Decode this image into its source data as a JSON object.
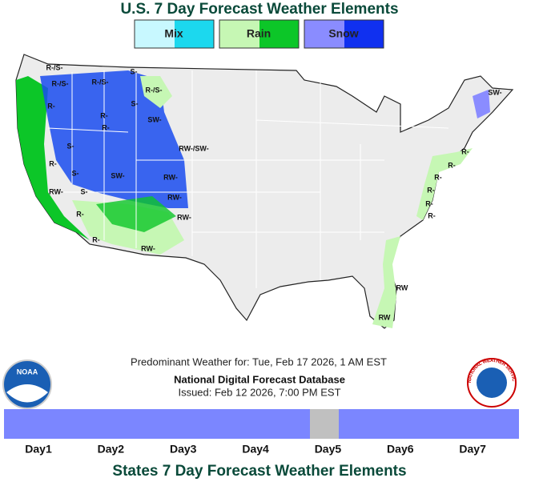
{
  "header": {
    "title": "U.S. 7 Day Forecast Weather Elements"
  },
  "legend": [
    "Mix",
    "Rain",
    "Snow"
  ],
  "map_labels": [
    "R-/S-",
    "R-/S-",
    "R-/S-",
    "S-",
    "R-/S-",
    "R-",
    "S-",
    "SW-",
    "R-",
    "R-",
    "S-",
    "RW-/SW-",
    "R-",
    "S-",
    "SW-",
    "RW-",
    "RW-",
    "S-",
    "RW-",
    "RW-",
    "R-",
    "R-",
    "RW-",
    "SW-",
    "R-",
    "R-",
    "R-",
    "R-",
    "R-",
    "R-",
    "RW",
    "RW"
  ],
  "info": {
    "valid": "Predominant Weather for: Tue, Feb 17 2026, 1 AM EST",
    "source": "National Digital Forecast Database",
    "issued": "Issued: Feb 12 2026, 7:00 PM EST"
  },
  "logos": {
    "noaa": "NOAA",
    "nws": "NATIONAL WEATHER SERVICE"
  },
  "days": [
    "Day1",
    "Day2",
    "Day3",
    "Day4",
    "Day5",
    "Day6",
    "Day7"
  ],
  "footer": {
    "link": "States 7 Day Forecast Weather Elements"
  }
}
